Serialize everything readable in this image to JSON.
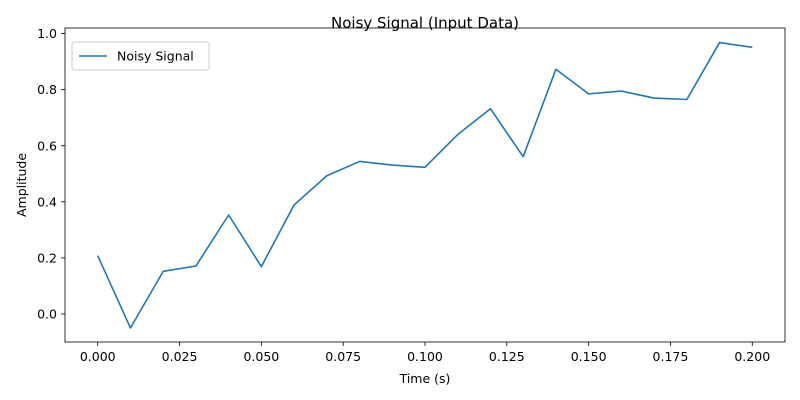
{
  "chart_data": {
    "type": "line",
    "title": "Noisy Signal (Input Data)",
    "xlabel": "Time (s)",
    "ylabel": "Amplitude",
    "xlim": [
      -0.01,
      0.21
    ],
    "ylim": [
      -0.1,
      1.02
    ],
    "xticks": [
      0.0,
      0.025,
      0.05,
      0.075,
      0.1,
      0.125,
      0.15,
      0.175,
      0.2
    ],
    "xtick_labels": [
      "0.000",
      "0.025",
      "0.050",
      "0.075",
      "0.100",
      "0.125",
      "0.150",
      "0.175",
      "0.200"
    ],
    "yticks": [
      0.0,
      0.2,
      0.4,
      0.6,
      0.8,
      1.0
    ],
    "ytick_labels": [
      "0.0",
      "0.2",
      "0.4",
      "0.6",
      "0.8",
      "1.0"
    ],
    "grid": false,
    "legend_position": "top-left",
    "series": [
      {
        "name": "Noisy Signal",
        "color": "#1f77b4",
        "x": [
          0.0,
          0.01,
          0.02,
          0.03,
          0.04,
          0.05,
          0.06,
          0.07,
          0.08,
          0.09,
          0.1,
          0.11,
          0.12,
          0.13,
          0.14,
          0.15,
          0.16,
          0.17,
          0.18,
          0.19,
          0.2
        ],
        "y": [
          0.208,
          -0.05,
          0.152,
          0.171,
          0.353,
          0.169,
          0.389,
          0.493,
          0.544,
          0.531,
          0.523,
          0.64,
          0.732,
          0.561,
          0.873,
          0.785,
          0.795,
          0.77,
          0.765,
          0.968,
          0.951
        ]
      }
    ]
  }
}
